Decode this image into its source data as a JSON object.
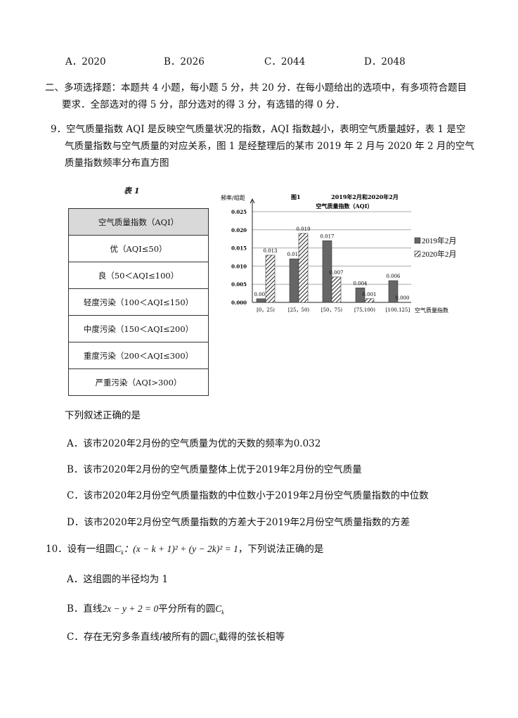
{
  "q8_options": [
    "A．2020",
    "B．2026",
    "C．2044",
    "D．2048"
  ],
  "section2": {
    "line1": "二、多项选择题：本题共 4 小题，每小题 5 分，共 20 分．在每小题给出的选项中，有多项符合题目",
    "line2": "要求．全部选对的得 5 分，部分选对的得 3 分，有选错的得 0 分．"
  },
  "q9": {
    "lines": [
      "9．空气质量指数 AQI 是反映空气质量状况的指数，AQI 指数越小，表明空气质量越好，表 1 是空",
      "气质量指数与空气质量的对应关系，图 1 是经整理后的某市 2019 年 2 月与 2020 年 2 月的空气",
      "质量指数频率分布直方图"
    ],
    "table_title": "表 1",
    "table_rows": [
      "空气质量指数（AQI）",
      "优（AQI≤50）",
      "良（50＜AQI≤100）",
      "轻度污染（100＜AQI≤150）",
      "中度污染（150＜AQI≤200）",
      "重度污染（200＜AQI≤300）",
      "严重污染（AQI>300）"
    ],
    "prompt": "下列叙述正确的是",
    "options": [
      "A．该市2020年2月份的空气质量为优的天数的频率为0.032",
      "B．该市2020年2月份的空气质量整体上优于2019年2月份的空气质量",
      "C．该市2020年2月份空气质量指数的中位数小于2019年2月份空气质量指数的中位数",
      "D．该市2020年2月份空气质量指数的方差大于2019年2月份空气质量指数的方差"
    ]
  },
  "chart_data": {
    "type": "bar",
    "title_left": "图1",
    "title": "2019年2月和2020年2月",
    "subtitle": "空气质量指数（AQI）",
    "ylabel": "频率/组距",
    "xlabel": "空气质量指数",
    "ylim": [
      0,
      0.025
    ],
    "yticks": [
      "0.000",
      "0.005",
      "0.010",
      "0.015",
      "0.020",
      "0.025"
    ],
    "categories": [
      "[0，25)",
      "[25，50)",
      "[50，75)",
      "[75,100)",
      "[100,125]"
    ],
    "series": [
      {
        "name": "2019年2月",
        "values": [
          0.001,
          0.012,
          0.017,
          0.004,
          0.006
        ],
        "labels": [
          "0.001",
          "0.012",
          "0.017",
          "0.004",
          "0.006"
        ],
        "color": "#666666",
        "fill": "solid"
      },
      {
        "name": "2020年2月",
        "values": [
          0.013,
          0.019,
          0.007,
          0.001,
          0.0
        ],
        "labels": [
          "0.013",
          "0.019",
          "0.007",
          "0.001",
          "0.000"
        ],
        "color": "#333333",
        "fill": "hatched"
      }
    ],
    "grid": true,
    "legend": "right"
  },
  "q10": {
    "stem_prefix": "10．设有一组圆",
    "stem_math": "C",
    "stem_sub": "k",
    "stem_eq": "：(x − k + 1)² + (y − 2k)² = 1",
    "stem_suffix": "，下列说法正确的是",
    "optA": "A．这组圆的半径均为 1",
    "optB_prefix": "B．直线",
    "optB_math": "2x − y + 2 = 0",
    "optB_suffix": "平分所有的圆",
    "optC_prefix": "C．存在无穷多条直线",
    "optC_math": "l",
    "optC_mid": "被所有的圆",
    "optC_suffix": "截得的弦长相等"
  }
}
